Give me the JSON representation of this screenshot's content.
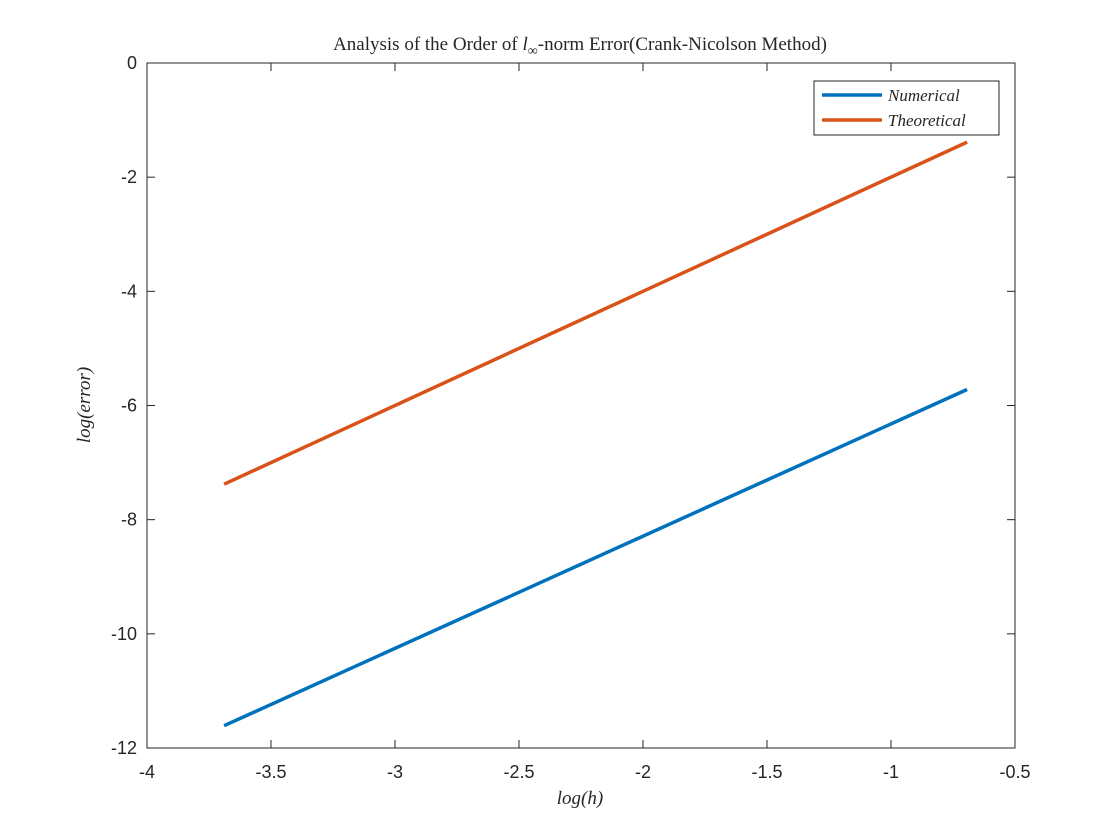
{
  "chart_data": {
    "type": "line",
    "title_prefix": "Analysis of the Order of ",
    "title_norm_base": "l",
    "title_norm_sub": "∞",
    "title_suffix": "-norm Error(Crank-Nicolson Method)",
    "xlabel": "log(h)",
    "ylabel": "log(error)",
    "xlim": [
      -4,
      -0.5
    ],
    "ylim": [
      -12,
      0
    ],
    "xticks": [
      -4,
      -3.5,
      -3,
      -2.5,
      -2,
      -1.5,
      -1,
      -0.5
    ],
    "xtick_labels": [
      "-4",
      "-3.5",
      "-3",
      "-2.5",
      "-2",
      "-1.5",
      "-1",
      "-0.5"
    ],
    "yticks": [
      0,
      -2,
      -4,
      -6,
      -8,
      -10,
      -12
    ],
    "ytick_labels": [
      "0",
      "-2",
      "-4",
      "-6",
      "-8",
      "-10",
      "-12"
    ],
    "grid": false,
    "legend_position": "top-right",
    "series": [
      {
        "name": "Numerical",
        "color": "#0072BD",
        "x": [
          -3.689,
          -0.693
        ],
        "y": [
          -11.61,
          -5.72
        ]
      },
      {
        "name": "Theoretical",
        "color": "#D95319",
        "x": [
          -3.689,
          -0.693
        ],
        "y": [
          -7.378,
          -1.386
        ]
      }
    ]
  }
}
